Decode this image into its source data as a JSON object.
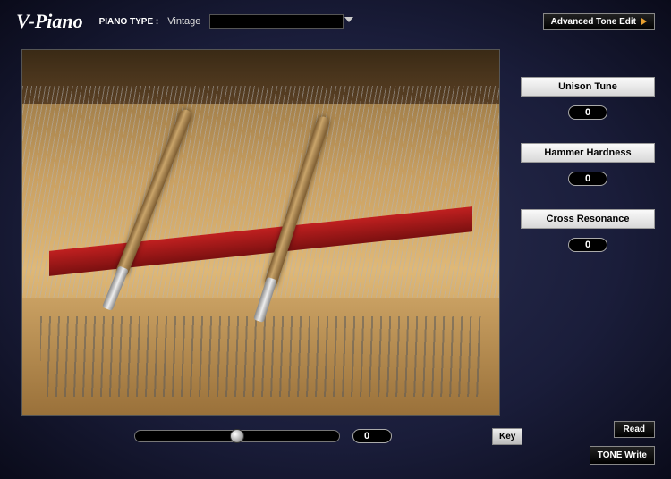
{
  "header": {
    "logo": "V-Piano",
    "piano_type_label": "PIANO TYPE :",
    "piano_type_value": "Vintage",
    "dropdown_selected": "",
    "advanced_edit": "Advanced Tone Edit"
  },
  "params": [
    {
      "label": "Unison Tune",
      "value": "0"
    },
    {
      "label": "Hammer Hardness",
      "value": "0"
    },
    {
      "label": "Cross Resonance",
      "value": "0"
    }
  ],
  "bottom": {
    "slider_value": "0",
    "key_label": "Key",
    "read_label": "Read",
    "tone_write_label": "TONE Write"
  },
  "colors": {
    "accent_orange": "#e8a030",
    "panel_bg_dark": "#000000",
    "grad_center": "#2a2f52",
    "grad_edge": "#0a0b1a"
  }
}
